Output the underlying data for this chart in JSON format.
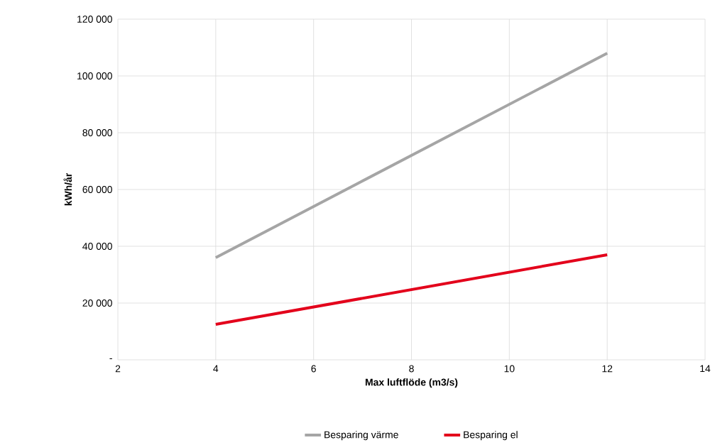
{
  "chart_data": {
    "type": "line",
    "xlabel": "Max luftflöde (m3/s)",
    "ylabel": "kWh/år",
    "x": [
      4,
      12
    ],
    "series": [
      {
        "name": "Besparing värme",
        "color": "#a5a5a5",
        "values": [
          36000,
          108000
        ]
      },
      {
        "name": "Besparing el",
        "color": "#e3001b",
        "values": [
          12500,
          37000
        ]
      }
    ],
    "xlim": [
      2,
      14
    ],
    "xticks": [
      2,
      4,
      6,
      8,
      10,
      12,
      14
    ],
    "ylim": [
      0,
      120000
    ],
    "yticks": [
      {
        "value": 0,
        "label": "-"
      },
      {
        "value": 20000,
        "label": "20 000"
      },
      {
        "value": 40000,
        "label": "40 000"
      },
      {
        "value": 60000,
        "label": "60 000"
      },
      {
        "value": 80000,
        "label": "80 000"
      },
      {
        "value": 100000,
        "label": "100 000"
      },
      {
        "value": 120000,
        "label": "120 000"
      }
    ],
    "grid": true,
    "legend": "bottom",
    "marker": "none",
    "line_style": "solid"
  }
}
